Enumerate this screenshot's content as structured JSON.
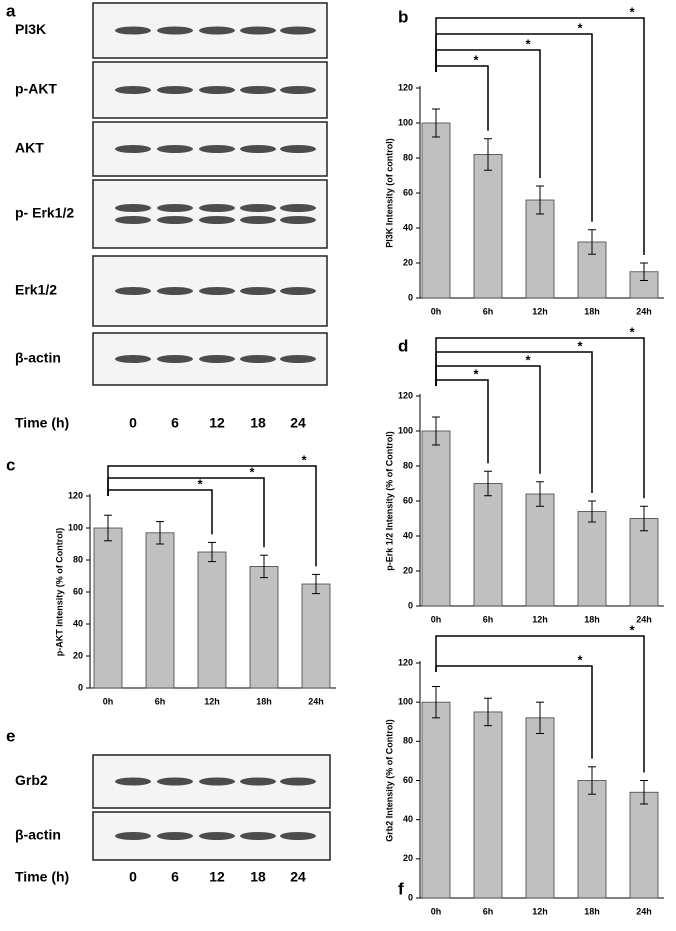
{
  "blot_a": {
    "panel": "a",
    "rows": [
      "PI3K",
      "p-AKT",
      "AKT",
      "p- Erk1/2",
      "Erk1/2",
      "β-actin"
    ],
    "time_label": "Time (h)",
    "times": [
      "0",
      "6",
      "12",
      "18",
      "24"
    ]
  },
  "blot_e": {
    "panel": "e",
    "rows": [
      "Grb2",
      "β-actin"
    ],
    "time_label": "Time (h)",
    "times": [
      "0",
      "6",
      "12",
      "18",
      "24"
    ]
  },
  "chart_data": [
    {
      "type": "bar",
      "panel": "b",
      "ylabel": "PI3K Intensity (of control)",
      "categories": [
        "0h",
        "6h",
        "12h",
        "18h",
        "24h"
      ],
      "values": [
        100,
        82,
        56,
        32,
        15
      ],
      "errors": [
        8,
        9,
        8,
        7,
        5
      ],
      "color": "#c0c0c0",
      "ylim": [
        0,
        120
      ],
      "yticks": [
        0,
        20,
        40,
        60,
        80,
        100,
        120
      ],
      "significance": [
        {
          "from": "0h",
          "to": "6h",
          "label": "*"
        },
        {
          "from": "0h",
          "to": "12h",
          "label": "*"
        },
        {
          "from": "0h",
          "to": "18h",
          "label": "*"
        },
        {
          "from": "0h",
          "to": "24h",
          "label": "*"
        }
      ]
    },
    {
      "type": "bar",
      "panel": "c",
      "ylabel": "p-AKT Intensity (% of Control)",
      "categories": [
        "0h",
        "6h",
        "12h",
        "18h",
        "24h"
      ],
      "values": [
        100,
        97,
        85,
        76,
        65
      ],
      "errors": [
        8,
        7,
        6,
        7,
        6
      ],
      "color": "#c0c0c0",
      "ylim": [
        0,
        120
      ],
      "yticks": [
        0,
        20,
        40,
        60,
        80,
        100,
        120
      ],
      "significance": [
        {
          "from": "0h",
          "to": "12h",
          "label": "*"
        },
        {
          "from": "0h",
          "to": "18h",
          "label": "*"
        },
        {
          "from": "0h",
          "to": "24h",
          "label": "*"
        }
      ]
    },
    {
      "type": "bar",
      "panel": "d",
      "ylabel": "p-Erk 1/2 Intensity (% of Control)",
      "categories": [
        "0h",
        "6h",
        "12h",
        "18h",
        "24h"
      ],
      "values": [
        100,
        70,
        64,
        54,
        50
      ],
      "errors": [
        8,
        7,
        7,
        6,
        7
      ],
      "color": "#c0c0c0",
      "ylim": [
        0,
        120
      ],
      "yticks": [
        0,
        20,
        40,
        60,
        80,
        100,
        120
      ],
      "significance": [
        {
          "from": "0h",
          "to": "6h",
          "label": "*"
        },
        {
          "from": "0h",
          "to": "12h",
          "label": "*"
        },
        {
          "from": "0h",
          "to": "18h",
          "label": "*"
        },
        {
          "from": "0h",
          "to": "24h",
          "label": "*"
        }
      ]
    },
    {
      "type": "bar",
      "panel": "f",
      "ylabel": "Grb2 Intensity (% of Control)",
      "categories": [
        "0h",
        "6h",
        "12h",
        "18h",
        "24h"
      ],
      "values": [
        100,
        95,
        92,
        60,
        54
      ],
      "errors": [
        8,
        7,
        8,
        7,
        6
      ],
      "color": "#c0c0c0",
      "ylim": [
        0,
        120
      ],
      "yticks": [
        0,
        20,
        40,
        60,
        80,
        100,
        120
      ],
      "significance": [
        {
          "from": "0h",
          "to": "18h",
          "label": "*"
        },
        {
          "from": "0h",
          "to": "24h",
          "label": "*"
        }
      ]
    }
  ]
}
